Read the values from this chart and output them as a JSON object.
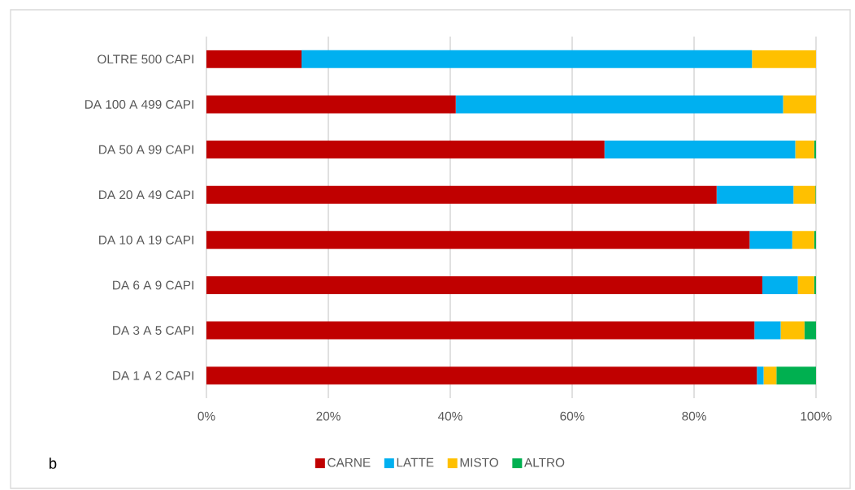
{
  "chart_data": {
    "type": "bar",
    "orientation": "horizontal",
    "stacked": true,
    "categories": [
      "OLTRE 500 CAPI",
      "DA 100 A 499 CAPI",
      "DA 50 A 99 CAPI",
      "DA 20 A 49 CAPI",
      "DA 10 A 19 CAPI",
      "DA 6 A 9 CAPI",
      "DA 3 A 5 CAPI",
      "DA 1 A 2 CAPI"
    ],
    "series": [
      {
        "name": "CARNE",
        "color": "#c00000",
        "values": [
          15.6,
          40.9,
          65.3,
          83.7,
          89.1,
          91.2,
          89.9,
          90.3
        ]
      },
      {
        "name": "LATTE",
        "color": "#00b0f0",
        "values": [
          73.9,
          53.7,
          31.3,
          12.6,
          7.0,
          5.8,
          4.3,
          1.1
        ]
      },
      {
        "name": "MISTO",
        "color": "#ffc000",
        "values": [
          10.5,
          5.4,
          3.1,
          3.6,
          3.6,
          2.7,
          3.9,
          2.1
        ]
      },
      {
        "name": "ALTRO",
        "color": "#00b050",
        "values": [
          0,
          0,
          0.3,
          0.1,
          0.3,
          0.3,
          1.9,
          6.5
        ]
      }
    ],
    "xlim": [
      0,
      100
    ],
    "xticks": [
      {
        "value": 0,
        "label": "0%"
      },
      {
        "value": 20,
        "label": "20%"
      },
      {
        "value": 40,
        "label": "40%"
      },
      {
        "value": 60,
        "label": "60%"
      },
      {
        "value": 80,
        "label": "80%"
      },
      {
        "value": 100,
        "label": "100%"
      }
    ],
    "grid": "x",
    "legend": "bottom",
    "annotations": [
      "b"
    ]
  }
}
